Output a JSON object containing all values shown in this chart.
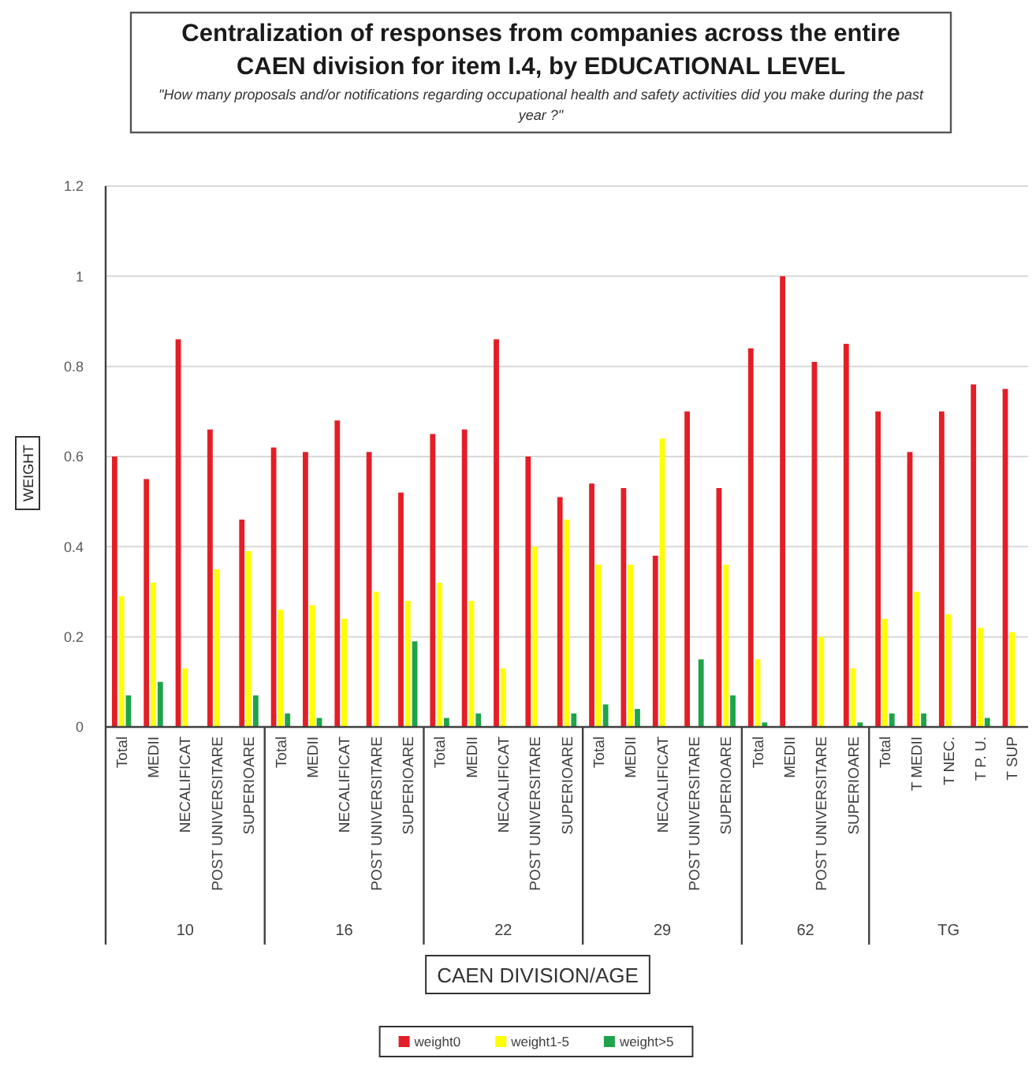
{
  "chart_data": {
    "type": "bar",
    "title": "Centralization of responses from companies across the entire CAEN division for item I.4, by EDUCATIONAL LEVEL",
    "subtitle": "\"How many proposals and/or notifications regarding occupational health and safety activities  did you make during the past year ?\"",
    "xlabel": "CAEN DIVISION/AGE",
    "ylabel": "WEIGHT",
    "categories": [
      "Total",
      "MEDII",
      "NECALIFICAT",
      "POST UNIVERSITARE",
      "SUPERIOARE",
      "Total",
      "MEDII",
      "NECALIFICAT",
      "POST UNIVERSITARE",
      "SUPERIOARE",
      "Total",
      "MEDII",
      "NECALIFICAT",
      "POST UNIVERSITARE",
      "SUPERIOARE",
      "Total",
      "MEDII",
      "NECALIFICAT",
      "POST UNIVERSITARE",
      "SUPERIOARE",
      "Total",
      "MEDII",
      "POST UNIVERSITARE",
      "SUPERIOARE",
      "Total",
      "T MEDII",
      "T NEC.",
      "T P. U.",
      "T SUP"
    ],
    "series": [
      {
        "name": "weight0",
        "color": "#e41e26",
        "values": [
          0.6,
          0.55,
          0.86,
          0.66,
          0.46,
          0.62,
          0.61,
          0.68,
          0.61,
          0.52,
          0.65,
          0.66,
          0.86,
          0.6,
          0.51,
          0.54,
          0.53,
          0.38,
          0.7,
          0.53,
          0.84,
          1.0,
          0.81,
          0.85,
          0.7,
          0.61,
          0.7,
          0.76,
          0.75
        ]
      },
      {
        "name": "weight1-5",
        "color": "#ffff00",
        "values": [
          0.29,
          0.32,
          0.13,
          0.35,
          0.39,
          0.26,
          0.27,
          0.24,
          0.3,
          0.28,
          0.32,
          0.28,
          0.13,
          0.4,
          0.46,
          0.36,
          0.36,
          0.64,
          0,
          0.36,
          0.15,
          0,
          0.2,
          0.13,
          0.24,
          0.3,
          0.25,
          0.22,
          0.21
        ]
      },
      {
        "name": "weight>5",
        "color": "#1fa34a",
        "values": [
          0.07,
          0.1,
          0,
          0,
          0.07,
          0.03,
          0.02,
          0,
          0,
          0.19,
          0.02,
          0.03,
          0,
          0,
          0.03,
          0.05,
          0.04,
          0,
          0.15,
          0.07,
          0.01,
          0,
          0,
          0.01,
          0.03,
          0.03,
          0,
          0.02,
          null
        ]
      }
    ],
    "ylim": [
      0,
      1.2
    ],
    "yticks": [
      0,
      0.2,
      0.4,
      0.6,
      0.8,
      1,
      1.2
    ],
    "grid": "y",
    "legend": "bottom",
    "annotations": [
      "10",
      "16",
      "22",
      "29",
      "62",
      "TG"
    ]
  }
}
